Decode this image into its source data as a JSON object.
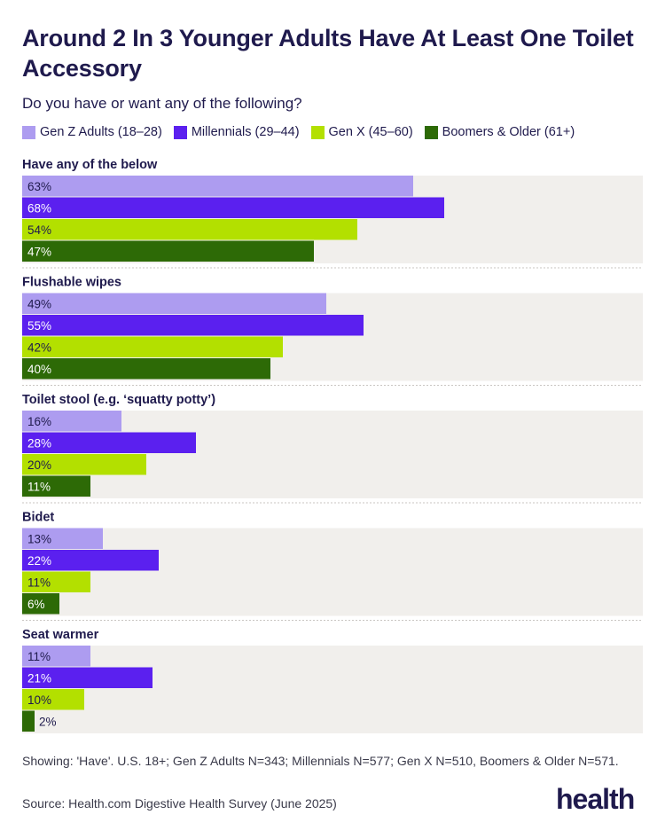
{
  "title": "Around 2 In 3 Younger Adults Have At Least One Toilet Accessory",
  "subtitle": "Do you have or want any of the following?",
  "legend": [
    {
      "label": "Gen Z Adults (18–28)",
      "color": "#ad9cf0"
    },
    {
      "label": "Millennials (29–44)",
      "color": "#5b20ef"
    },
    {
      "label": "Gen X (45–60)",
      "color": "#b3e000"
    },
    {
      "label": "Boomers & Older (61+)",
      "color": "#2d6a06"
    }
  ],
  "chart_data": {
    "type": "bar",
    "orientation": "horizontal",
    "x_range": [
      0,
      100
    ],
    "unit": "%",
    "categories": [
      "Have any of the below",
      "Flushable wipes",
      "Toilet stool (e.g. ‘squatty potty’)",
      "Bidet",
      "Seat warmer"
    ],
    "series": [
      {
        "name": "Gen Z Adults (18–28)",
        "color": "#ad9cf0",
        "values": [
          63,
          49,
          16,
          13,
          11
        ]
      },
      {
        "name": "Millennials (29–44)",
        "color": "#5b20ef",
        "values": [
          68,
          55,
          28,
          22,
          21
        ]
      },
      {
        "name": "Gen X (45–60)",
        "color": "#b3e000",
        "values": [
          54,
          42,
          20,
          11,
          10
        ]
      },
      {
        "name": "Boomers & Older (61+)",
        "color": "#2d6a06",
        "values": [
          47,
          40,
          11,
          6,
          2
        ]
      }
    ],
    "track_color": "#f1efec"
  },
  "footnote": "Showing: 'Have'. U.S. 18+; Gen Z Adults N=343; Millennials N=577; Gen X N=510, Boomers & Older N=571.",
  "source": "Source: Health.com Digestive Health Survey (June 2025)",
  "logo_text": "health"
}
